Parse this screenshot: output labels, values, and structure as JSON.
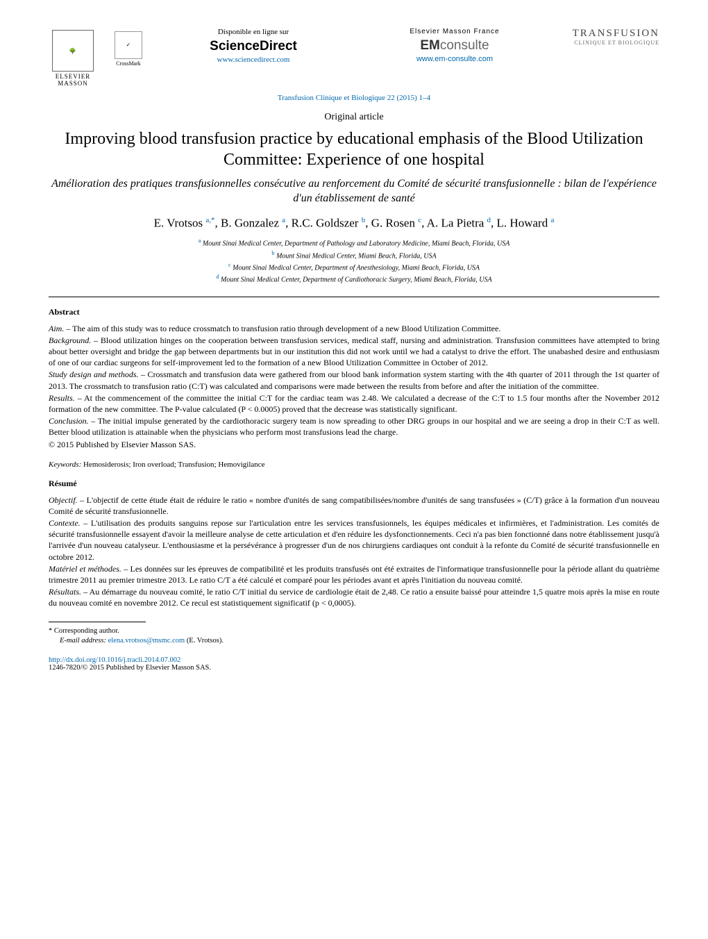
{
  "header": {
    "elsevier_label": "ELSEVIER",
    "masson_label": "MASSON",
    "crossmark_label": "CrossMark",
    "online_label": "Disponible en ligne sur",
    "sciencedirect": "ScienceDirect",
    "sciencedirect_url": "www.sciencedirect.com",
    "emf_label": "Elsevier Masson France",
    "emconsulte_prefix": "EM",
    "emconsulte_suffix": "consulte",
    "emconsulte_url": "www.em-consulte.com",
    "journal_title": "TRANSFUSION",
    "journal_subtitle": "CLINIQUE ET BIOLOGIQUE"
  },
  "citation": "Transfusion Clinique et Biologique 22 (2015) 1–4",
  "article_type": "Original article",
  "title": "Improving blood transfusion practice by educational emphasis of the Blood Utilization Committee: Experience of one hospital",
  "title_fr": "Amélioration des pratiques transfusionnelles consécutive au renforcement du Comité de sécurité transfusionnelle : bilan de l'expérience d'un établissement de santé",
  "authors_html": "E. Vrotsos <sup>a,*</sup>, B. Gonzalez <sup>a</sup>, R.C. Goldszer <sup>b</sup>, G. Rosen <sup>c</sup>, A. La Pietra <sup>d</sup>, L. Howard <sup>a</sup>",
  "affiliations": [
    {
      "sup": "a",
      "text": "Mount Sinai Medical Center, Department of Pathology and Laboratory Medicine, Miami Beach, Florida, USA"
    },
    {
      "sup": "b",
      "text": "Mount Sinai Medical Center, Miami Beach, Florida, USA"
    },
    {
      "sup": "c",
      "text": "Mount Sinai Medical Center, Department of Anesthesiology, Miami Beach, Florida, USA"
    },
    {
      "sup": "d",
      "text": "Mount Sinai Medical Center, Department of Cardiothoracic Surgery, Miami Beach, Florida, USA"
    }
  ],
  "abstract": {
    "heading": "Abstract",
    "sections": [
      {
        "label": "Aim. –",
        "text": " The aim of this study was to reduce crossmatch to transfusion ratio through development of a new Blood Utilization Committee."
      },
      {
        "label": "Background. –",
        "text": " Blood utilization hinges on the cooperation between transfusion services, medical staff, nursing and administration. Transfusion committees have attempted to bring about better oversight and bridge the gap between departments but in our institution this did not work until we had a catalyst to drive the effort. The unabashed desire and enthusiasm of one of our cardiac surgeons for self-improvement led to the formation of a new Blood Utilization Committee in October of 2012."
      },
      {
        "label": "Study design and methods. –",
        "text": " Crossmatch and transfusion data were gathered from our blood bank information system starting with the 4th quarter of 2011 through the 1st quarter of 2013. The crossmatch to transfusion ratio (C:T) was calculated and comparisons were made between the results from before and after the initiation of the committee."
      },
      {
        "label": "Results. –",
        "text": " At the commencement of the committee the initial C:T for the cardiac team was 2.48. We calculated a decrease of the C:T to 1.5 four months after the November 2012 formation of the new committee. The P-value calculated (P < 0.0005) proved that the decrease was statistically significant."
      },
      {
        "label": "Conclusion. –",
        "text": " The initial impulse generated by the cardiothoracic surgery team is now spreading to other DRG groups in our hospital and we are seeing a drop in their C:T as well. Better blood utilization is attainable when the physicians who perform most transfusions lead the charge."
      }
    ],
    "copyright": "© 2015 Published by Elsevier Masson SAS."
  },
  "keywords": {
    "label": "Keywords:",
    "text": "Hemosiderosis; Iron overload; Transfusion; Hemovigilance"
  },
  "resume": {
    "heading": "Résumé",
    "sections": [
      {
        "label": "Objectif. –",
        "text": " L'objectif de cette étude était de réduire le ratio « nombre d'unités de sang compatibilisées/nombre d'unités de sang transfusées » (C/T) grâce à la formation d'un nouveau Comité de sécurité transfusionnelle."
      },
      {
        "label": "Contexte. –",
        "text": " L'utilisation des produits sanguins repose sur l'articulation entre les services transfusionnels, les équipes médicales et infirmières, et l'administration. Les comités de sécurité transfusionnelle essayent d'avoir la meilleure analyse de cette articulation et d'en réduire les dysfonctionnements. Ceci n'a pas bien fonctionné dans notre établissement jusqu'à l'arrivée d'un nouveau catalyseur. L'enthousiasme et la persévérance à progresser d'un de nos chirurgiens cardiaques ont conduit à la refonte du Comité de sécurité transfusionnelle en octobre 2012."
      },
      {
        "label": "Matériel et méthodes. –",
        "text": " Les données sur les épreuves de compatibilité et les produits transfusés ont été extraites de l'informatique transfusionnelle pour la période allant du quatrième trimestre 2011 au premier trimestre 2013. Le ratio C/T a été calculé et comparé pour les périodes avant et après l'initiation du nouveau comité."
      },
      {
        "label": "Résultats. –",
        "text": " Au démarrage du nouveau comité, le ratio C/T initial du service de cardiologie était de 2,48. Ce ratio a ensuite baissé pour atteindre 1,5 quatre mois après la mise en route du nouveau comité en novembre 2012. Ce recul est statistiquement significatif (p < 0,0005)."
      }
    ]
  },
  "footnote": {
    "corresponding": "* Corresponding author.",
    "email_label": "E-mail address:",
    "email": "elena.vrotsos@msmc.com",
    "email_author": "(E. Vrotsos)."
  },
  "doi": "http://dx.doi.org/10.1016/j.tracli.2014.07.002",
  "issn_line": "1246-7820/© 2015 Published by Elsevier Masson SAS."
}
